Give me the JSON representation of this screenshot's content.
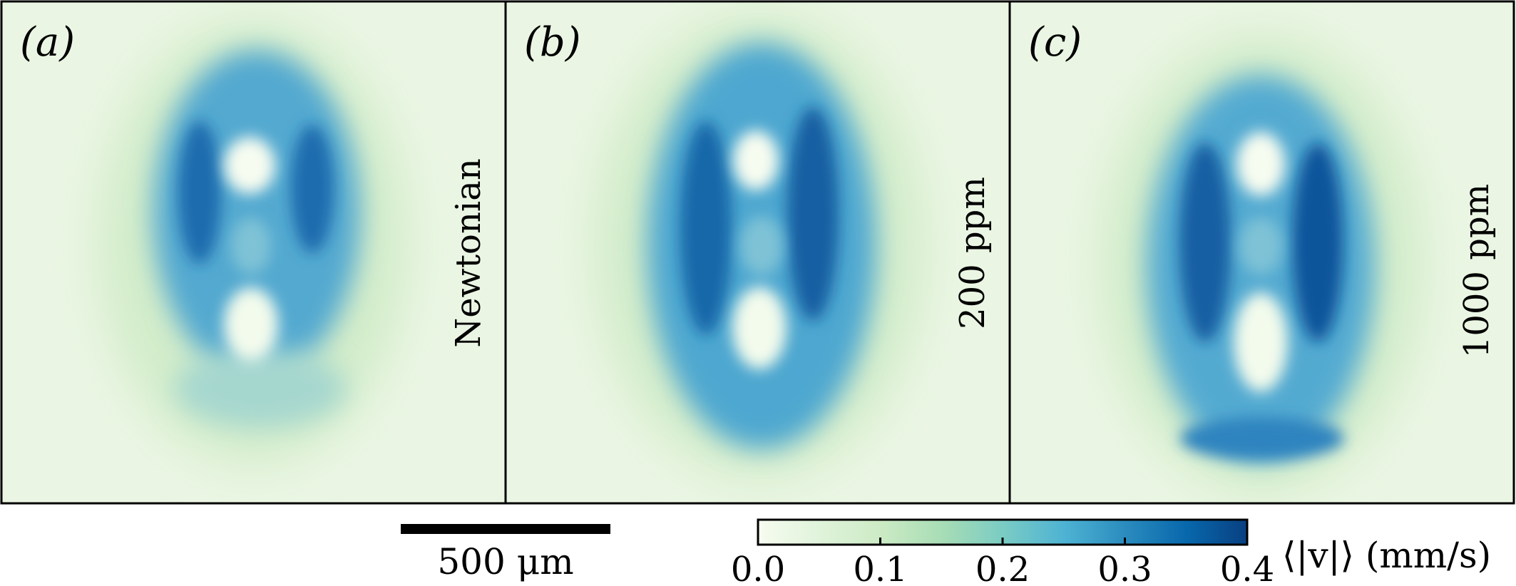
{
  "chart_data": {
    "type": "heatmap",
    "panels": [
      {
        "label": "(a)",
        "condition": "Newtonian"
      },
      {
        "label": "(b)",
        "condition": "200 ppm"
      },
      {
        "label": "(c)",
        "condition": "1000 ppm"
      }
    ],
    "scale_bar": {
      "label": "500 μm",
      "value_um": 500
    },
    "colorbar": {
      "label": "⟨|v|⟩ (mm/s)",
      "range": [
        0.0,
        0.4
      ],
      "ticks": [
        0.0,
        0.1,
        0.2,
        0.3,
        0.4
      ],
      "tick_labels": [
        "0.0",
        "0.1",
        "0.2",
        "0.3",
        "0.4"
      ],
      "colormap": [
        "#f7fcf0",
        "#e0f3db",
        "#ccebc5",
        "#a8ddb5",
        "#7bccc4",
        "#4eb3d3",
        "#2b8cbe",
        "#0868ac",
        "#084081"
      ]
    }
  }
}
